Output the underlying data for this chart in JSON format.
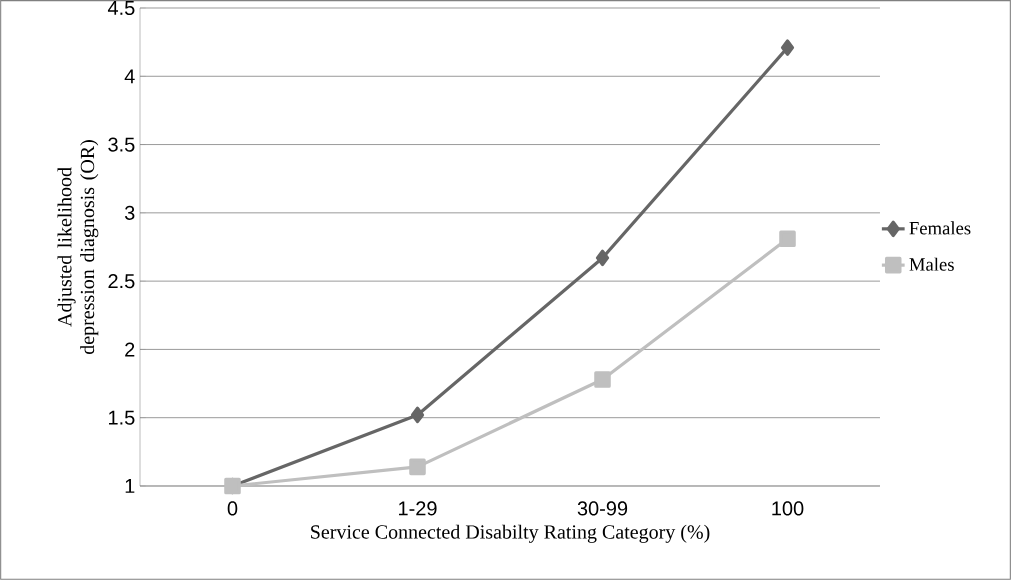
{
  "chart_data": {
    "type": "line",
    "xlabel": "Service Connected Disabilty Rating Category (%)",
    "ylabel": "Adjusted likelihood depression diagnosis (OR)",
    "categories": [
      "0",
      "1-29",
      "30-99",
      "100"
    ],
    "series": [
      {
        "name": "Females",
        "color": "#666666",
        "marker": "diamond",
        "values": [
          1,
          1.52,
          2.67,
          4.21
        ]
      },
      {
        "name": "Males",
        "color": "#bfbfbf",
        "marker": "square",
        "values": [
          1,
          1.14,
          1.78,
          2.81
        ]
      }
    ],
    "ylim": [
      1,
      4.5
    ],
    "yticks": [
      1,
      1.5,
      2,
      2.5,
      3,
      3.5,
      4,
      4.5
    ],
    "grid": "y",
    "legend": "right"
  }
}
